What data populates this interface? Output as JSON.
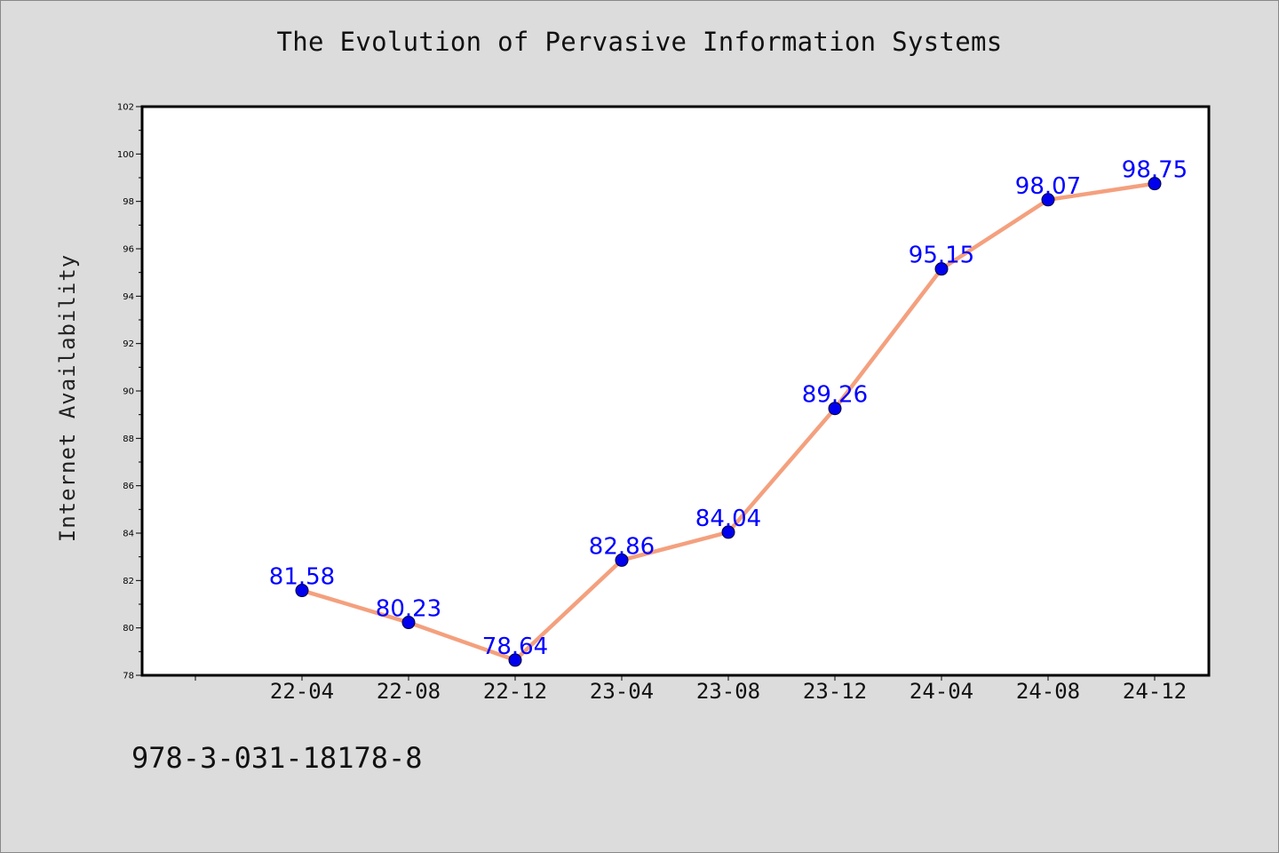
{
  "chart_data": {
    "type": "line",
    "title": "The Evolution of Pervasive Information Systems",
    "xlabel": "",
    "ylabel": "Internet Availability",
    "categories": [
      "22-04",
      "22-08",
      "22-12",
      "23-04",
      "23-08",
      "23-12",
      "24-04",
      "24-08",
      "24-12"
    ],
    "series": [
      {
        "values": [
          81.58,
          80.23,
          78.64,
          82.86,
          84.04,
          89.26,
          95.15,
          98.07,
          98.75
        ],
        "data_labels": [
          "81.58",
          "80.23",
          "78.64",
          "82.86",
          "84.04",
          "89.26",
          "95.15",
          "98.07",
          "98.75"
        ]
      }
    ],
    "ylim": [
      78,
      102
    ],
    "yticks": [
      78,
      80,
      82,
      84,
      86,
      88,
      90,
      92,
      94,
      96,
      98,
      100,
      102
    ],
    "grid": false,
    "legend": "none",
    "colors": {
      "line": "#f4a07e",
      "marker": "#0000ee",
      "data_label": "#0000ff",
      "plot_background": "#ffffff",
      "page_background": "#dcdcdc"
    }
  },
  "footer": {
    "isbn": "978-3-031-18178-8"
  }
}
